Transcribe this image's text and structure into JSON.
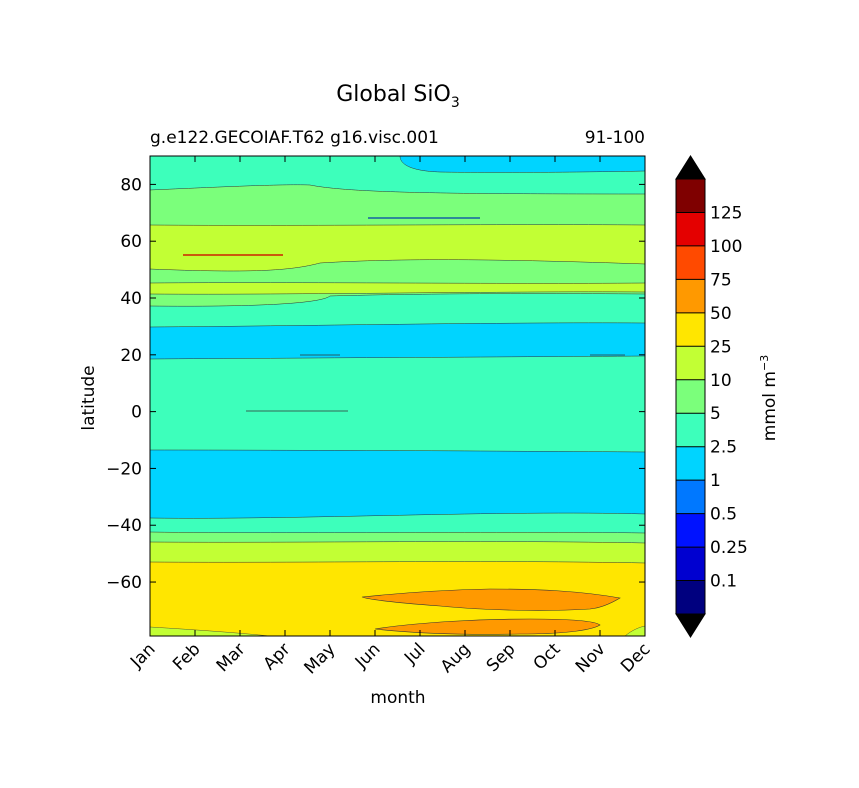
{
  "chart_data": {
    "type": "heatmap",
    "title_main": "Global SiO",
    "title_sub": "3",
    "subtitle_left": "g.e122.GECOIAF.T62 g16.visc.001",
    "subtitle_right": "91-100",
    "xlabel": "month",
    "ylabel": "latitude",
    "x_categories": [
      "Jan",
      "Feb",
      "Mar",
      "Apr",
      "May",
      "Jun",
      "Jul",
      "Aug",
      "Sep",
      "Oct",
      "Nov",
      "Dec"
    ],
    "yticks": [
      80,
      60,
      40,
      20,
      0,
      -20,
      -40,
      -60
    ],
    "ylim": [
      -79,
      90
    ],
    "colorbar": {
      "label": "mmol m",
      "label_sup": "−3",
      "levels": [
        "0.1",
        "0.25",
        "0.5",
        "1",
        "2.5",
        "5",
        "10",
        "25",
        "50",
        "75",
        "100",
        "125"
      ],
      "colors": [
        "#00007f",
        "#0000d0",
        "#0012ff",
        "#0078ff",
        "#00d4ff",
        "#3dffbb",
        "#7bff7b",
        "#c2ff34",
        "#ffe600",
        "#ff9900",
        "#ff4a00",
        "#e40000",
        "#7f0000"
      ],
      "extend_colors": {
        "under": "#000000",
        "over": "#000000"
      }
    },
    "field_colors": {
      "range_0_1_to_2_5": "#00d4ff",
      "range_2_5_to_5": "#3dffbb",
      "range_5_to_10": "#7bff7b",
      "range_10_to_25": "#c2ff34",
      "range_25_to_50": "#ffe600",
      "range_50_to_75": "#ff9900",
      "range_75_to_100": "#ff4a00"
    },
    "bands": [
      {
        "range": "2.5-5",
        "lat_min": 83,
        "lat_max": 90,
        "months": "Jan-Jun, Nov-Dec"
      },
      {
        "range": "1-2.5",
        "lat_min": 83,
        "lat_max": 90,
        "months": "Jul-Oct"
      },
      {
        "range": "2.5-5",
        "lat_min": 77,
        "lat_max": 83,
        "months": "all"
      },
      {
        "range": "5-10",
        "lat_min": 65,
        "lat_max": 77,
        "months": "all"
      },
      {
        "range": "10-25",
        "lat_min": 50,
        "lat_max": 65,
        "months": "all"
      },
      {
        "range": "5-10",
        "lat_min": 45,
        "lat_max": 53,
        "months": "all"
      },
      {
        "range": "10-25",
        "lat_min": 41,
        "lat_max": 45,
        "months": "all"
      },
      {
        "range": "5-10",
        "lat_min": 37,
        "lat_max": 41,
        "months": "all"
      },
      {
        "range": "2.5-5",
        "lat_min": 30,
        "lat_max": 37,
        "months": "all"
      },
      {
        "range": "1-2.5",
        "lat_min": 18,
        "lat_max": 30,
        "months": "all"
      },
      {
        "range": "2.5-5",
        "lat_min": -13,
        "lat_max": 18,
        "months": "all"
      },
      {
        "range": "1-2.5",
        "lat_min": -38,
        "lat_max": -13,
        "months": "all"
      },
      {
        "range": "2.5-5",
        "lat_min": -43,
        "lat_max": -38,
        "months": "all"
      },
      {
        "range": "5-10",
        "lat_min": -47,
        "lat_max": -43,
        "months": "all"
      },
      {
        "range": "10-25",
        "lat_min": -54,
        "lat_max": -47,
        "months": "all"
      },
      {
        "range": "25-50",
        "lat_min": -79,
        "lat_max": -54,
        "months": "all"
      },
      {
        "range": "50-75",
        "lat_min": -72,
        "lat_max": -63,
        "months": "Jun-Nov"
      },
      {
        "range": "50-75",
        "lat_min": -79,
        "lat_max": -74,
        "months": "Jul-Nov"
      }
    ]
  }
}
